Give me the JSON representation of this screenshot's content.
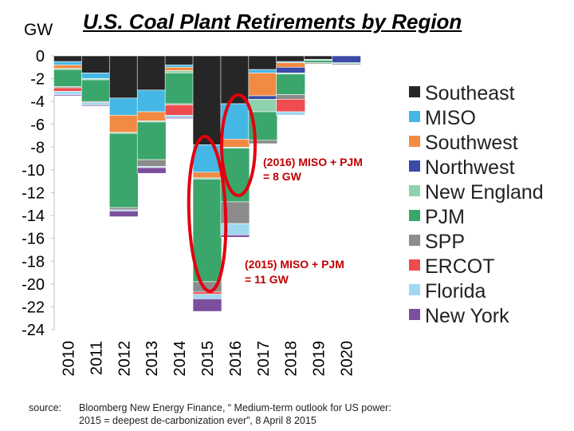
{
  "title": "U.S. Coal Plant Retirements by Region",
  "unit_label": "GW",
  "source": {
    "label": "source:",
    "line1": "Bloomberg New Energy Finance, “ Medium-term outlook for US power:",
    "line2": "2015 = deepest de-carbonization ever”, 8 April 8 2015"
  },
  "annotations": [
    {
      "text_line1": "(2016) MISO + PJM",
      "text_line2": "= 8 GW"
    },
    {
      "text_line1": "(2015) MISO + PJM",
      "text_line2": "= 11 GW"
    }
  ],
  "chart_data": {
    "type": "bar",
    "stacked": true,
    "title": "U.S. Coal Plant Retirements by Region",
    "ylabel": "GW",
    "ylim": [
      -24,
      0
    ],
    "yticks": [
      0,
      -2,
      -4,
      -6,
      -8,
      -10,
      -12,
      -14,
      -16,
      -18,
      -20,
      -22,
      -24
    ],
    "legend_position": "right",
    "categories": [
      "2010",
      "2011",
      "2012",
      "2013",
      "2014",
      "2015",
      "2016",
      "2017",
      "2018",
      "2019",
      "2020"
    ],
    "series": [
      {
        "name": "Southeast",
        "color": "#262626",
        "values": [
          -0.5,
          -1.5,
          -3.7,
          -3.0,
          -0.8,
          -7.8,
          -4.2,
          -1.2,
          -0.5,
          -0.3,
          0
        ]
      },
      {
        "name": "MISO",
        "color": "#45b7e5",
        "values": [
          -0.3,
          -0.5,
          -1.5,
          -1.9,
          -0.2,
          -2.4,
          -3.1,
          -0.3,
          -0.1,
          0,
          0
        ]
      },
      {
        "name": "Southwest",
        "color": "#f28a44",
        "values": [
          -0.3,
          0,
          -1.5,
          -0.8,
          -0.3,
          -0.5,
          -0.7,
          -2.0,
          -0.4,
          0,
          0
        ]
      },
      {
        "name": "Northwest",
        "color": "#3c4aa8",
        "values": [
          0,
          0,
          0,
          0,
          0,
          0,
          0,
          -0.3,
          -0.5,
          0,
          -0.6
        ]
      },
      {
        "name": "New England",
        "color": "#8ed2ae",
        "values": [
          -0.1,
          -0.1,
          -0.1,
          -0.1,
          -0.2,
          -0.1,
          -0.1,
          -1.1,
          -0.1,
          -0.1,
          -0.1
        ]
      },
      {
        "name": "PJM",
        "color": "#3ba66b",
        "values": [
          -1.5,
          -1.9,
          -6.5,
          -3.3,
          -2.7,
          -9.0,
          -4.7,
          -2.5,
          -1.8,
          -0.2,
          0
        ]
      },
      {
        "name": "SPP",
        "color": "#8c8c8c",
        "values": [
          -0.1,
          -0.1,
          -0.2,
          -0.6,
          -0.1,
          -0.9,
          -1.9,
          -0.3,
          -0.4,
          -0.1,
          -0.1
        ]
      },
      {
        "name": "ERCOT",
        "color": "#ef4c4f",
        "values": [
          -0.3,
          0,
          0,
          0,
          -0.9,
          -0.2,
          0,
          0,
          -1.1,
          0,
          0
        ]
      },
      {
        "name": "Florida",
        "color": "#9fd8f0",
        "values": [
          -0.3,
          -0.2,
          -0.1,
          -0.1,
          -0.2,
          -0.4,
          -1.0,
          0,
          -0.3,
          0,
          0
        ]
      },
      {
        "name": "New York",
        "color": "#7b4f9d",
        "values": [
          -0.1,
          -0.1,
          -0.5,
          -0.5,
          -0.1,
          -1.1,
          -0.2,
          0,
          0,
          0,
          0
        ]
      }
    ]
  }
}
